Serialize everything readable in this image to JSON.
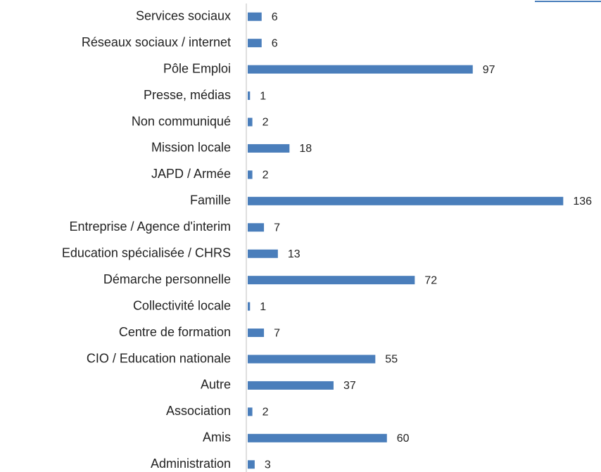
{
  "chart_data": {
    "type": "bar",
    "orientation": "horizontal",
    "categories": [
      "Services sociaux",
      "Réseaux sociaux / internet",
      "Pôle Emploi",
      "Presse, médias",
      "Non communiqué",
      "Mission locale",
      "JAPD / Armée",
      "Famille",
      "Entreprise / Agence d'interim",
      "Education spécialisée / CHRS",
      "Démarche personnelle",
      "Collectivité locale",
      "Centre de formation",
      "CIO / Education nationale",
      "Autre",
      "Association",
      "Amis",
      "Administration"
    ],
    "values": [
      6,
      6,
      97,
      1,
      2,
      18,
      2,
      136,
      7,
      13,
      72,
      1,
      7,
      55,
      37,
      2,
      60,
      3
    ],
    "color": "#4a7ebb",
    "xlim": [
      0,
      145
    ]
  }
}
